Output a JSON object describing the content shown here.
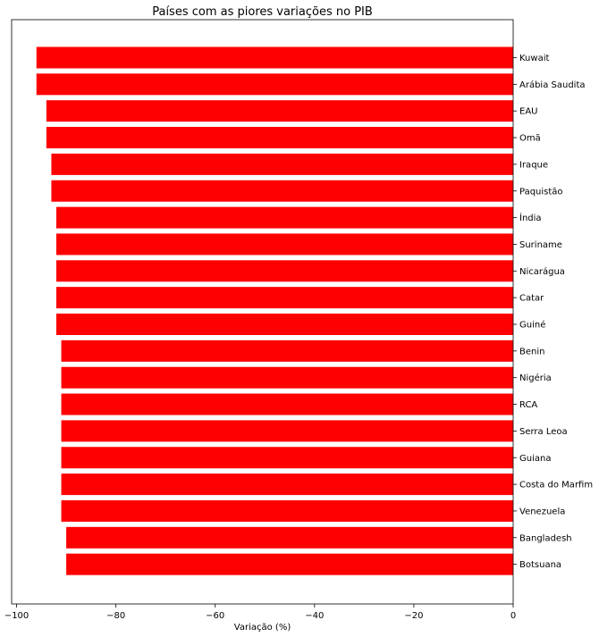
{
  "chart_data": {
    "type": "bar",
    "orientation": "horizontal",
    "title": "Países com as piores variações no PIB",
    "xlabel": "Variação (%)",
    "ylabel": "",
    "xlim": [
      -101,
      0
    ],
    "xticks": [
      -100,
      -80,
      -60,
      -40,
      -20,
      0
    ],
    "xtick_labels": [
      "−100",
      "−80",
      "−60",
      "−40",
      "−20",
      "0"
    ],
    "bar_color": "#ff0000",
    "grid": false,
    "y_axis_side": "right",
    "categories": [
      "Kuwait",
      "Arábia Saudita",
      "EAU",
      "Omã",
      "Iraque",
      "Paquistão",
      "Índia",
      "Suriname",
      "Nicarágua",
      "Catar",
      "Guiné",
      "Benin",
      "Nigéria",
      "RCA",
      "Serra Leoa",
      "Guiana",
      "Costa do Marfim",
      "Venezuela",
      "Bangladesh",
      "Botsuana"
    ],
    "values": [
      -96,
      -96,
      -94,
      -94,
      -93,
      -93,
      -92,
      -92,
      -92,
      -92,
      -92,
      -91,
      -91,
      -91,
      -91,
      -91,
      -91,
      -91,
      -90,
      -90
    ]
  }
}
